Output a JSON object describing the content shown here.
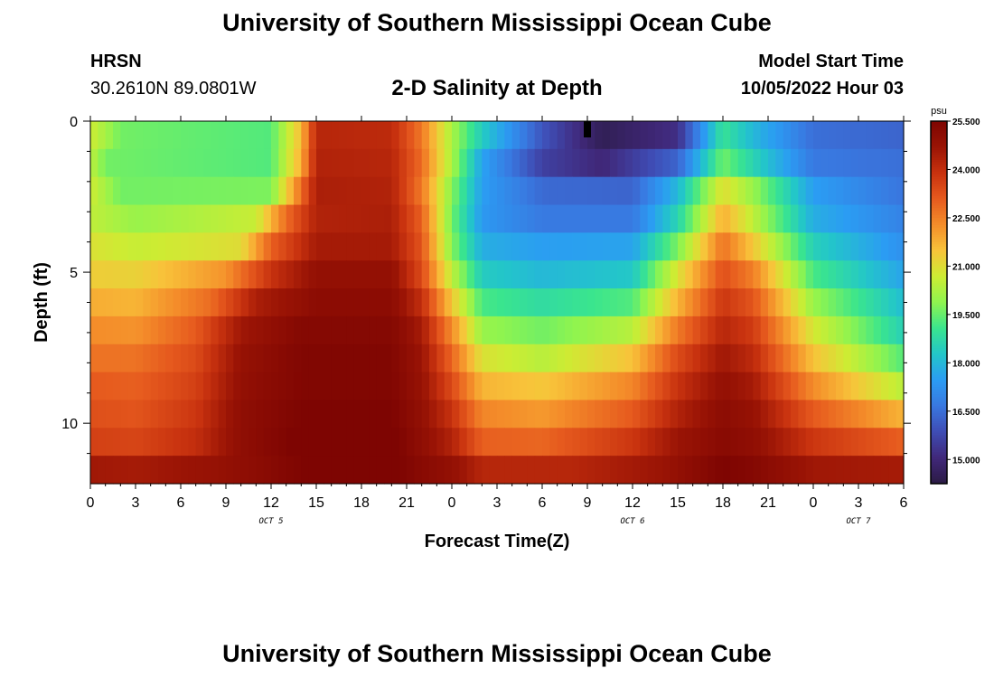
{
  "page_title": "University of Southern Mississippi Ocean Cube",
  "page_title_bottom": "University of Southern Mississippi Ocean Cube",
  "station": {
    "name": "HRSN",
    "coords": "30.2610N  89.0801W"
  },
  "model_start": {
    "label": "Model Start Time",
    "value": "10/05/2022 Hour 03"
  },
  "chart_data": {
    "type": "heatmap",
    "title": "2-D Salinity at Depth",
    "xlabel": "Forecast Time(Z)",
    "ylabel": "Depth (ft)",
    "x_hours": [
      0,
      54
    ],
    "y_depth_ft": [
      0,
      12
    ],
    "x_tick_labels": [
      "0",
      "3",
      "6",
      "9",
      "12",
      "15",
      "18",
      "21",
      "0",
      "3",
      "6",
      "9",
      "12",
      "15",
      "18",
      "21",
      "0",
      "3",
      "6"
    ],
    "y_tick_labels": [
      "0",
      "5",
      "10"
    ],
    "day_labels": [
      {
        "label": "OCT 5",
        "hour": 12
      },
      {
        "label": "OCT 6",
        "hour": 36
      },
      {
        "label": "OCT 7",
        "hour": 51
      }
    ],
    "colorbar": {
      "unit": "psu",
      "min": 14.25,
      "max": 25.5,
      "tick_labels": [
        "25.500",
        "24.000",
        "22.500",
        "21.000",
        "19.500",
        "18.000",
        "16.500",
        "15.000"
      ],
      "colors": [
        "#2b1b45",
        "#40287a",
        "#3f4db5",
        "#3978e0",
        "#2b9cf3",
        "#23c6c9",
        "#3ae58e",
        "#8ff44f",
        "#cdec33",
        "#f8c33a",
        "#f48d2a",
        "#e65a1e",
        "#c8320f",
        "#9a1405",
        "#7e0502"
      ]
    },
    "depth_rows": [
      {
        "depth": 0,
        "knots": [
          [
            0,
            20.7
          ],
          [
            2,
            19.6
          ],
          [
            12,
            19.3
          ],
          [
            14,
            21.6
          ],
          [
            15,
            24.2
          ],
          [
            20,
            24.1
          ],
          [
            22,
            22.6
          ],
          [
            24,
            20.2
          ],
          [
            26,
            18.4
          ],
          [
            30,
            16.0
          ],
          [
            34,
            14.5
          ],
          [
            39,
            15.2
          ],
          [
            42,
            19.0
          ],
          [
            44,
            18.0
          ],
          [
            48,
            16.5
          ],
          [
            54,
            16.3
          ]
        ]
      },
      {
        "depth": 1,
        "knots": [
          [
            0,
            20.5
          ],
          [
            1,
            19.6
          ],
          [
            12,
            19.3
          ],
          [
            14,
            21.8
          ],
          [
            15,
            24.3
          ],
          [
            20,
            24.2
          ],
          [
            22,
            22.8
          ],
          [
            24,
            20.2
          ],
          [
            26,
            17.6
          ],
          [
            30,
            15.6
          ],
          [
            34,
            15.0
          ],
          [
            39,
            16.3
          ],
          [
            42,
            19.6
          ],
          [
            44,
            18.6
          ],
          [
            48,
            16.7
          ],
          [
            54,
            16.5
          ]
        ]
      },
      {
        "depth": 2,
        "knots": [
          [
            0,
            20.7
          ],
          [
            2,
            19.6
          ],
          [
            12,
            19.7
          ],
          [
            13.5,
            22.0
          ],
          [
            15,
            24.4
          ],
          [
            20,
            24.3
          ],
          [
            22,
            22.6
          ],
          [
            24,
            19.8
          ],
          [
            26,
            17.5
          ],
          [
            30,
            16.4
          ],
          [
            36,
            16.3
          ],
          [
            39,
            18.0
          ],
          [
            42,
            21.0
          ],
          [
            44,
            20.0
          ],
          [
            48,
            17.5
          ],
          [
            54,
            16.6
          ]
        ]
      },
      {
        "depth": 3,
        "knots": [
          [
            0,
            20.5
          ],
          [
            3,
            20.0
          ],
          [
            11,
            20.6
          ],
          [
            13,
            22.8
          ],
          [
            15,
            24.3
          ],
          [
            20,
            24.4
          ],
          [
            22,
            23.0
          ],
          [
            24,
            19.6
          ],
          [
            26,
            17.4
          ],
          [
            30,
            16.7
          ],
          [
            36,
            16.7
          ],
          [
            39,
            18.6
          ],
          [
            42,
            21.8
          ],
          [
            44,
            20.5
          ],
          [
            48,
            17.8
          ],
          [
            54,
            16.9
          ]
        ]
      },
      {
        "depth": 4,
        "knots": [
          [
            0,
            20.9
          ],
          [
            3,
            20.6
          ],
          [
            10,
            21.0
          ],
          [
            12,
            23.0
          ],
          [
            15,
            24.5
          ],
          [
            20,
            24.5
          ],
          [
            22,
            23.2
          ],
          [
            24,
            19.8
          ],
          [
            26,
            17.8
          ],
          [
            30,
            17.5
          ],
          [
            36,
            17.6
          ],
          [
            39,
            19.7
          ],
          [
            42,
            22.7
          ],
          [
            44,
            21.4
          ],
          [
            48,
            18.5
          ],
          [
            54,
            17.2
          ]
        ]
      },
      {
        "depth": 5,
        "knots": [
          [
            0,
            21.3
          ],
          [
            3,
            21.2
          ],
          [
            9,
            22.2
          ],
          [
            12,
            23.9
          ],
          [
            15,
            24.9
          ],
          [
            20,
            24.9
          ],
          [
            22,
            23.4
          ],
          [
            24,
            20.5
          ],
          [
            26,
            18.4
          ],
          [
            30,
            18.0
          ],
          [
            36,
            18.3
          ],
          [
            39,
            20.9
          ],
          [
            42,
            23.3
          ],
          [
            44,
            22.5
          ],
          [
            48,
            19.2
          ],
          [
            54,
            17.6
          ]
        ]
      },
      {
        "depth": 6,
        "knots": [
          [
            0,
            21.8
          ],
          [
            3,
            21.7
          ],
          [
            8,
            22.8
          ],
          [
            11,
            24.4
          ],
          [
            15,
            25.1
          ],
          [
            20,
            25.1
          ],
          [
            22,
            24.0
          ],
          [
            24,
            21.4
          ],
          [
            26,
            19.2
          ],
          [
            30,
            18.8
          ],
          [
            36,
            19.3
          ],
          [
            39,
            21.7
          ],
          [
            42,
            23.8
          ],
          [
            44,
            23.2
          ],
          [
            48,
            20.0
          ],
          [
            54,
            18.1
          ]
        ]
      },
      {
        "depth": 7,
        "knots": [
          [
            0,
            22.3
          ],
          [
            3,
            22.2
          ],
          [
            7,
            23.1
          ],
          [
            10,
            24.6
          ],
          [
            14,
            25.3
          ],
          [
            20,
            25.3
          ],
          [
            22,
            24.5
          ],
          [
            24,
            22.3
          ],
          [
            26,
            20.0
          ],
          [
            30,
            19.6
          ],
          [
            36,
            20.4
          ],
          [
            39,
            22.6
          ],
          [
            42,
            24.2
          ],
          [
            44,
            23.7
          ],
          [
            48,
            20.8
          ],
          [
            54,
            18.5
          ]
        ]
      },
      {
        "depth": 8,
        "knots": [
          [
            0,
            22.7
          ],
          [
            3,
            22.7
          ],
          [
            7,
            23.4
          ],
          [
            10,
            24.8
          ],
          [
            14,
            25.4
          ],
          [
            20,
            25.4
          ],
          [
            22,
            24.7
          ],
          [
            24,
            22.9
          ],
          [
            26,
            20.9
          ],
          [
            30,
            20.4
          ],
          [
            36,
            21.5
          ],
          [
            39,
            23.4
          ],
          [
            42,
            24.6
          ],
          [
            44,
            24.1
          ],
          [
            48,
            21.5
          ],
          [
            54,
            19.3
          ]
        ]
      },
      {
        "depth": 9,
        "knots": [
          [
            0,
            23.1
          ],
          [
            3,
            23.0
          ],
          [
            7,
            23.6
          ],
          [
            10,
            24.9
          ],
          [
            14,
            25.4
          ],
          [
            20,
            25.4
          ],
          [
            22,
            24.8
          ],
          [
            24,
            23.4
          ],
          [
            26,
            21.7
          ],
          [
            30,
            21.4
          ],
          [
            36,
            22.4
          ],
          [
            39,
            23.9
          ],
          [
            42,
            24.9
          ],
          [
            44,
            24.5
          ],
          [
            48,
            22.3
          ],
          [
            54,
            20.4
          ]
        ]
      },
      {
        "depth": 10,
        "knots": [
          [
            0,
            23.3
          ],
          [
            3,
            23.2
          ],
          [
            7,
            23.8
          ],
          [
            10,
            25.0
          ],
          [
            14,
            25.5
          ],
          [
            20,
            25.5
          ],
          [
            22,
            24.9
          ],
          [
            24,
            23.9
          ],
          [
            26,
            22.4
          ],
          [
            30,
            22.1
          ],
          [
            36,
            23.1
          ],
          [
            39,
            24.3
          ],
          [
            42,
            25.1
          ],
          [
            44,
            24.8
          ],
          [
            48,
            23.1
          ],
          [
            54,
            21.7
          ]
        ]
      },
      {
        "depth": 11,
        "knots": [
          [
            0,
            23.6
          ],
          [
            3,
            23.5
          ],
          [
            7,
            24.0
          ],
          [
            10,
            25.0
          ],
          [
            14,
            25.6
          ],
          [
            20,
            25.6
          ],
          [
            22,
            25.0
          ],
          [
            24,
            24.3
          ],
          [
            26,
            23.0
          ],
          [
            30,
            22.9
          ],
          [
            36,
            23.8
          ],
          [
            39,
            24.7
          ],
          [
            42,
            25.2
          ],
          [
            44,
            25.0
          ],
          [
            48,
            23.8
          ],
          [
            54,
            23.0
          ]
        ]
      },
      {
        "depth": 12,
        "knots": [
          [
            0,
            24.6
          ],
          [
            3,
            24.5
          ],
          [
            8,
            24.8
          ],
          [
            11,
            25.1
          ],
          [
            15,
            25.6
          ],
          [
            20,
            25.6
          ],
          [
            22,
            25.2
          ],
          [
            24,
            24.9
          ],
          [
            26,
            24.2
          ],
          [
            32,
            24.2
          ],
          [
            38,
            24.7
          ],
          [
            42,
            25.5
          ],
          [
            44,
            25.3
          ],
          [
            48,
            24.6
          ],
          [
            54,
            24.5
          ]
        ]
      }
    ]
  }
}
